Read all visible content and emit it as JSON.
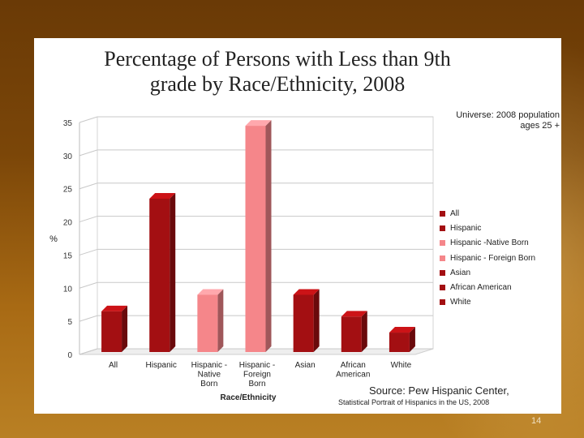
{
  "slide": {
    "title_line1": "Percentage of Persons with Less than 9th",
    "title_line2": "grade by Race/Ethnicity, 2008",
    "universe_line1": "Universe:  2008 population",
    "universe_line2": "ages 25 +",
    "source_line1": "Source: Pew Hispanic Center,",
    "source_line2": "Statistical Portrait of Hispanics in the US, 2008",
    "page_number": "14"
  },
  "chart_data": {
    "type": "bar",
    "title": "Percentage of Persons with Less than 9th grade by Race/Ethnicity, 2008",
    "xlabel": "Race/Ethnicity",
    "ylabel": "%",
    "ylim": [
      0,
      35
    ],
    "yticks": [
      "0",
      "5",
      "10",
      "15",
      "20",
      "25",
      "30",
      "35"
    ],
    "grid": true,
    "legend_position": "right",
    "categories": [
      [
        "All"
      ],
      [
        "Hispanic"
      ],
      [
        "Hispanic -",
        "Native",
        "Born"
      ],
      [
        "Hispanic -",
        "Foreign",
        "Born"
      ],
      [
        "Asian"
      ],
      [
        "African",
        "American"
      ],
      [
        "White"
      ]
    ],
    "values": [
      6.5,
      23.5,
      9.0,
      34.5,
      9.0,
      5.7,
      3.3
    ],
    "colors": [
      "#a30f12",
      "#a30f12",
      "#f5868a",
      "#f5868a",
      "#a30f12",
      "#a30f12",
      "#a30f12"
    ],
    "legend": [
      {
        "label": "All",
        "color": "#a30f12"
      },
      {
        "label": "Hispanic",
        "color": "#a30f12"
      },
      {
        "label": "Hispanic -Native Born",
        "color": "#f5868a"
      },
      {
        "label": "Hispanic - Foreign Born",
        "color": "#f5868a"
      },
      {
        "label": "Asian",
        "color": "#a30f12"
      },
      {
        "label": "African American",
        "color": "#a30f12"
      },
      {
        "label": "White",
        "color": "#a30f12"
      }
    ]
  }
}
